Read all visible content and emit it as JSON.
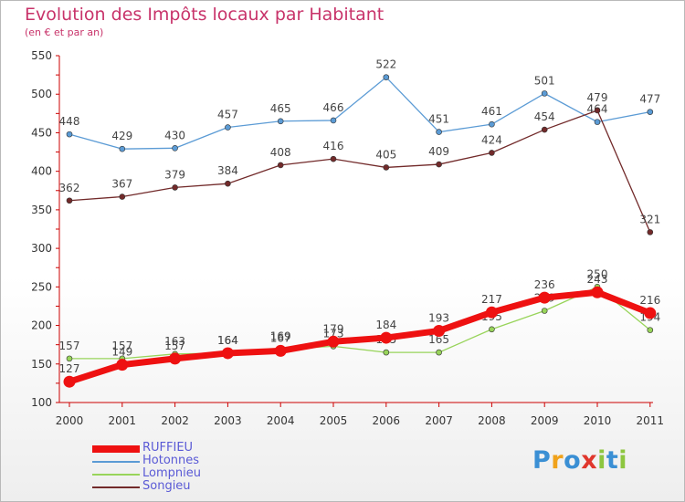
{
  "title": "Evolution des Impôts locaux par Habitant",
  "subtitle": "(en € et par an)",
  "logo": {
    "letters": [
      "P",
      "r",
      "o",
      "x",
      "i",
      "t",
      "i"
    ],
    "colors": [
      "#3a8fd4",
      "#f0a21a",
      "#3a8fd4",
      "#e0362c",
      "#8dc63f",
      "#3a8fd4",
      "#8dc63f"
    ]
  },
  "chart_data": {
    "type": "line",
    "x": [
      "2000",
      "2001",
      "2002",
      "2003",
      "2004",
      "2005",
      "2006",
      "2007",
      "2008",
      "2009",
      "2010",
      "2011"
    ],
    "ylim": [
      100,
      550
    ],
    "yticks": [
      "100",
      "150",
      "200",
      "250",
      "300",
      "350",
      "400",
      "450",
      "500",
      "550"
    ],
    "grid": false,
    "legend_position": "bottom-left",
    "series": [
      {
        "name": "Hotonnes",
        "color": "#5b9bd5",
        "values": [
          448,
          429,
          430,
          457,
          465,
          466,
          522,
          451,
          461,
          501,
          464,
          477
        ],
        "labels": [
          "448",
          "429",
          "430",
          "457",
          "465",
          "466",
          "522",
          "451",
          "461",
          "501",
          "464",
          "477"
        ]
      },
      {
        "name": "Songieu",
        "color": "#722a2a",
        "values": [
          362,
          367,
          379,
          384,
          408,
          416,
          405,
          409,
          424,
          454,
          479,
          321
        ],
        "labels": [
          "362",
          "367",
          "379",
          "384",
          "408",
          "416",
          "405",
          "409",
          "424",
          "454",
          "479",
          "321"
        ]
      },
      {
        "name": "Lompnieu",
        "color": "#98d45a",
        "values": [
          157,
          157,
          163,
          164,
          169,
          173,
          165,
          165,
          195,
          219,
          250,
          194
        ],
        "labels": [
          "157",
          "157",
          "163",
          "164",
          "169",
          "173",
          "165",
          "165",
          "195",
          "219",
          "250",
          "194"
        ]
      },
      {
        "name": "RUFFIEU",
        "color": "#ee1111",
        "values": [
          127,
          149,
          157,
          164,
          167,
          179,
          184,
          193,
          217,
          236,
          243,
          216
        ],
        "labels": [
          "127",
          "149",
          "157",
          "164",
          "167",
          "179",
          "184",
          "193",
          "217",
          "236",
          "243",
          "216"
        ]
      }
    ],
    "legend_order": [
      "RUFFIEU",
      "Hotonnes",
      "Lompnieu",
      "Songieu"
    ]
  }
}
